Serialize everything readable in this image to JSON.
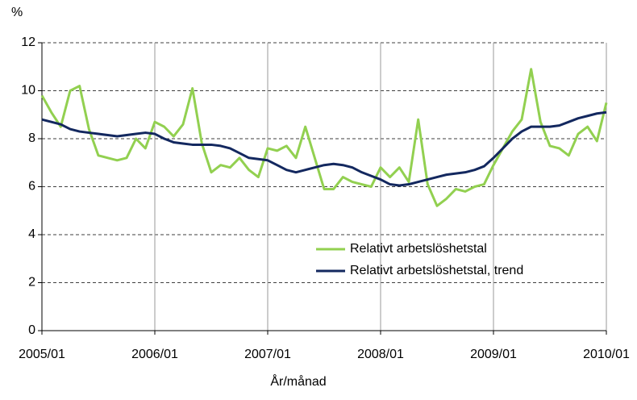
{
  "chart_data": {
    "type": "line",
    "y_label": "%",
    "x_label": "År/månad",
    "categories": [
      "2005/01",
      null,
      null,
      null,
      null,
      null,
      null,
      null,
      null,
      null,
      null,
      null,
      "2006/01",
      null,
      null,
      null,
      null,
      null,
      null,
      null,
      null,
      null,
      null,
      null,
      "2007/01",
      null,
      null,
      null,
      null,
      null,
      null,
      null,
      null,
      null,
      null,
      null,
      "2008/01",
      null,
      null,
      null,
      null,
      null,
      null,
      null,
      null,
      null,
      null,
      null,
      "2009/01",
      null,
      null,
      null,
      null,
      null,
      null,
      null,
      null,
      null,
      null,
      null,
      "2010/01"
    ],
    "series": [
      {
        "name": "Relativt arbetslöshetstal",
        "color": "#92d050",
        "values": [
          9.8,
          9.1,
          8.5,
          10.0,
          10.2,
          8.4,
          7.3,
          7.2,
          7.1,
          7.2,
          8.0,
          7.6,
          8.7,
          8.5,
          8.1,
          8.6,
          10.1,
          7.8,
          6.6,
          6.9,
          6.8,
          7.2,
          6.7,
          6.4,
          7.6,
          7.5,
          7.7,
          7.2,
          8.5,
          7.2,
          5.9,
          5.9,
          6.4,
          6.2,
          6.1,
          6.0,
          6.8,
          6.4,
          6.8,
          6.2,
          8.8,
          6.1,
          5.2,
          5.5,
          5.9,
          5.8,
          6.0,
          6.1,
          6.9,
          7.6,
          8.3,
          8.8,
          10.9,
          8.7,
          7.7,
          7.6,
          7.3,
          8.2,
          8.5,
          7.9,
          9.5
        ]
      },
      {
        "name": "Relativt arbetslöshetstal, trend",
        "color": "#13285f",
        "values": [
          8.8,
          8.7,
          8.6,
          8.4,
          8.3,
          8.25,
          8.2,
          8.15,
          8.1,
          8.15,
          8.2,
          8.25,
          8.2,
          8.0,
          7.85,
          7.8,
          7.75,
          7.75,
          7.75,
          7.7,
          7.6,
          7.4,
          7.2,
          7.15,
          7.1,
          6.9,
          6.7,
          6.6,
          6.7,
          6.8,
          6.9,
          6.95,
          6.9,
          6.8,
          6.6,
          6.45,
          6.3,
          6.1,
          6.05,
          6.1,
          6.2,
          6.3,
          6.4,
          6.5,
          6.55,
          6.6,
          6.7,
          6.85,
          7.2,
          7.6,
          8.0,
          8.3,
          8.5,
          8.5,
          8.5,
          8.55,
          8.7,
          8.85,
          8.95,
          9.05,
          9.1
        ]
      }
    ],
    "ylim": [
      0,
      12
    ],
    "yticks": [
      0,
      2,
      4,
      6,
      8,
      10,
      12
    ],
    "grid": true,
    "legend": "lower right"
  }
}
